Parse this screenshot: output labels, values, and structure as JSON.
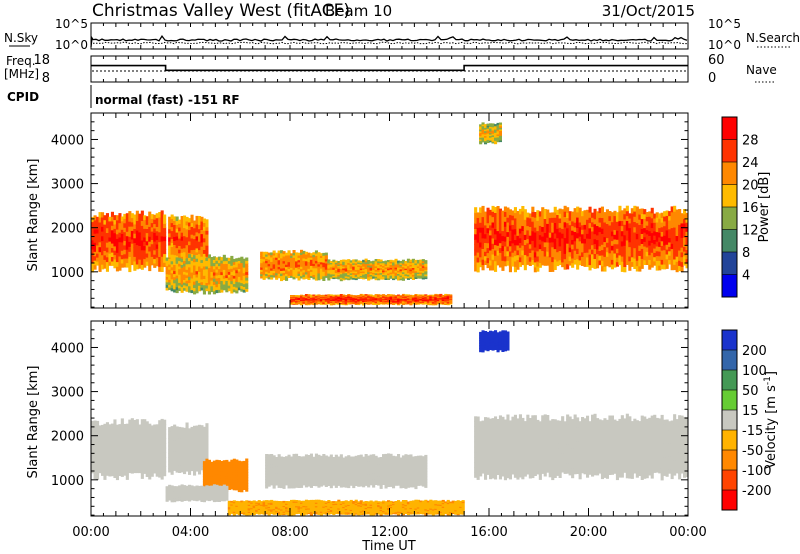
{
  "header": {
    "station": "Christmas Valley West (fitACF)",
    "beam": "Beam 10",
    "date": "31/Oct/2015"
  },
  "noise_panel": {
    "left_label": "N.Sky",
    "right_label": "N.Search",
    "left_ticks": [
      "10^5",
      "10^0"
    ],
    "right_ticks": [
      "10^5",
      "10^0"
    ]
  },
  "freq_panel": {
    "left_label_1": "Freq.",
    "left_label_2": "[MHz]",
    "right_label": "Nave",
    "left_ticks": [
      "18",
      "8"
    ],
    "right_ticks": [
      "60",
      "0"
    ]
  },
  "cpid": {
    "label": "CPID",
    "mode": "normal (fast) -151 RF"
  },
  "x_axis": {
    "label": "Time UT",
    "ticks": [
      "00:00",
      "04:00",
      "08:00",
      "12:00",
      "16:00",
      "20:00",
      "00:00"
    ]
  },
  "power_colorbar": {
    "label": "Power [dB]",
    "ticks": [
      "28",
      "24",
      "20",
      "16",
      "12",
      "8",
      "4"
    ],
    "colors": [
      "#ff0000",
      "#ff3300",
      "#ff8800",
      "#ffbb00",
      "#88aa44",
      "#448866",
      "#224499",
      "#0000ee"
    ]
  },
  "velocity_colorbar": {
    "label_main": "Velocity [m s",
    "label_sup": "-1",
    "label_end": "]",
    "ticks": [
      "200",
      "100",
      "50",
      "15",
      "-15",
      "-50",
      "-100",
      "-200"
    ],
    "colors": [
      "#1a33cc",
      "#3366aa",
      "#449955",
      "#66cc33",
      "#c8c8c0",
      "#ffb300",
      "#ff8800",
      "#ff4400",
      "#ff0000"
    ]
  },
  "chart_data": {
    "type": "heatmap",
    "ylabel": "Slant Range [km]",
    "xlabel": "Time UT",
    "x_range_hours": [
      0,
      24
    ],
    "y_range_km": [
      180,
      4600
    ],
    "y_ticks": [
      1000,
      2000,
      3000,
      4000
    ],
    "frequency_trace_mhz": [
      {
        "t": [
          0,
          3
        ],
        "value": 14.3
      },
      {
        "t": [
          3,
          15
        ],
        "value": 12.5
      },
      {
        "t": [
          15,
          24
        ],
        "value": 14.3
      }
    ],
    "power_regions": [
      {
        "t": [
          0,
          3
        ],
        "range_km": [
          1000,
          2400
        ],
        "power_db": 28
      },
      {
        "t": [
          3.1,
          4.7
        ],
        "range_km": [
          1100,
          2300
        ],
        "power_db": 26
      },
      {
        "t": [
          3.0,
          6.3
        ],
        "range_km": [
          500,
          1400
        ],
        "power_db": 22
      },
      {
        "t": [
          6.8,
          9.5
        ],
        "range_km": [
          800,
          1500
        ],
        "power_db": 24
      },
      {
        "t": [
          9.5,
          13.5
        ],
        "range_km": [
          800,
          1300
        ],
        "power_db": 22
      },
      {
        "t": [
          8.0,
          14.5
        ],
        "range_km": [
          250,
          500
        ],
        "power_db": 28
      },
      {
        "t": [
          15.4,
          24
        ],
        "range_km": [
          1000,
          2500
        ],
        "power_db": 28
      },
      {
        "t": [
          15.6,
          16.5
        ],
        "range_km": [
          3900,
          4400
        ],
        "power_db": 20
      }
    ],
    "velocity_regions": [
      {
        "t": [
          0,
          3
        ],
        "range_km": [
          1000,
          2400
        ],
        "velocity_ms": 0
      },
      {
        "t": [
          3.1,
          4.7
        ],
        "range_km": [
          1100,
          2300
        ],
        "velocity_ms": 0
      },
      {
        "t": [
          4.5,
          6.3
        ],
        "range_km": [
          700,
          1500
        ],
        "velocity_ms": -70
      },
      {
        "t": [
          3.0,
          5.5
        ],
        "range_km": [
          500,
          900
        ],
        "velocity_ms": 0
      },
      {
        "t": [
          7.0,
          13.5
        ],
        "range_km": [
          800,
          1600
        ],
        "velocity_ms": 0
      },
      {
        "t": [
          5.5,
          15.0
        ],
        "range_km": [
          200,
          550
        ],
        "velocity_ms": -40
      },
      {
        "t": [
          15.4,
          24
        ],
        "range_km": [
          1000,
          2500
        ],
        "velocity_ms": 0
      },
      {
        "t": [
          15.6,
          16.8
        ],
        "range_km": [
          3900,
          4400
        ],
        "velocity_ms": 220
      }
    ]
  }
}
